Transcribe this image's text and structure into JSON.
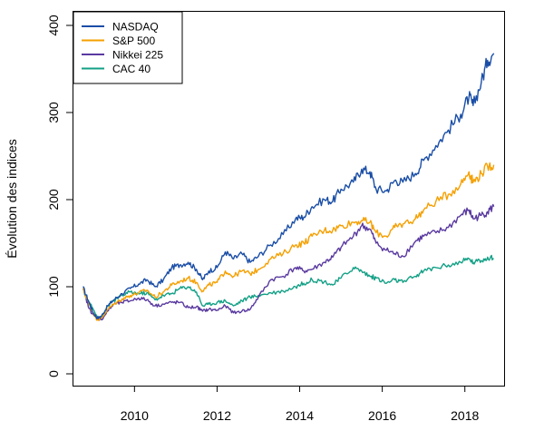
{
  "chart_data": {
    "type": "line",
    "xlabel": "",
    "ylabel": "Évolution des indices",
    "xlim": [
      2008.5,
      2018.95
    ],
    "ylim": [
      0,
      400
    ],
    "xticks": [
      2010,
      2012,
      2014,
      2016,
      2018
    ],
    "xtick_labels": [
      "2010",
      "2012",
      "2014",
      "2016",
      "2018"
    ],
    "yticks": [
      0,
      100,
      200,
      300,
      400
    ],
    "ytick_labels": [
      "0",
      "100",
      "200",
      "300",
      "400"
    ],
    "grid": false,
    "legend_position": "top-left",
    "series": [
      {
        "name": "NASDAQ",
        "color": "#1a4ea6",
        "x": [
          2008.75,
          2008.9,
          2009.0,
          2009.1,
          2009.2,
          2009.35,
          2009.5,
          2009.7,
          2009.9,
          2010.1,
          2010.3,
          2010.5,
          2010.7,
          2010.9,
          2011.1,
          2011.3,
          2011.5,
          2011.65,
          2011.8,
          2012.0,
          2012.2,
          2012.4,
          2012.6,
          2012.8,
          2013.0,
          2013.3,
          2013.6,
          2013.9,
          2014.1,
          2014.3,
          2014.6,
          2014.8,
          2015.0,
          2015.3,
          2015.5,
          2015.7,
          2015.85,
          2016.1,
          2016.3,
          2016.5,
          2016.8,
          2017.0,
          2017.3,
          2017.6,
          2017.9,
          2018.1,
          2018.2,
          2018.4,
          2018.55,
          2018.7
        ],
        "values": [
          100,
          82,
          70,
          64,
          66,
          78,
          85,
          92,
          98,
          103,
          108,
          100,
          108,
          122,
          125,
          128,
          120,
          108,
          118,
          122,
          140,
          132,
          138,
          128,
          135,
          148,
          160,
          178,
          180,
          192,
          200,
          198,
          212,
          220,
          235,
          232,
          212,
          210,
          222,
          220,
          230,
          245,
          262,
          280,
          298,
          318,
          308,
          335,
          360,
          368
        ]
      },
      {
        "name": "S&P 500",
        "color": "#f5a000",
        "x": [
          2008.75,
          2008.9,
          2009.0,
          2009.1,
          2009.2,
          2009.35,
          2009.5,
          2009.7,
          2009.9,
          2010.1,
          2010.3,
          2010.5,
          2010.7,
          2010.9,
          2011.1,
          2011.3,
          2011.5,
          2011.65,
          2011.8,
          2012.0,
          2012.2,
          2012.4,
          2012.6,
          2012.8,
          2013.0,
          2013.3,
          2013.6,
          2013.9,
          2014.1,
          2014.3,
          2014.6,
          2014.8,
          2015.0,
          2015.3,
          2015.5,
          2015.7,
          2015.85,
          2016.1,
          2016.3,
          2016.5,
          2016.8,
          2017.0,
          2017.3,
          2017.6,
          2017.9,
          2018.1,
          2018.2,
          2018.4,
          2018.55,
          2018.7
        ],
        "values": [
          98,
          80,
          70,
          62,
          64,
          74,
          80,
          86,
          90,
          93,
          96,
          88,
          94,
          102,
          106,
          110,
          105,
          95,
          102,
          105,
          118,
          112,
          118,
          115,
          120,
          132,
          138,
          148,
          150,
          158,
          165,
          165,
          170,
          174,
          176,
          174,
          162,
          158,
          168,
          172,
          178,
          188,
          198,
          206,
          218,
          232,
          220,
          230,
          238,
          240
        ]
      },
      {
        "name": "Nikkei 225",
        "color": "#5a3aa0",
        "x": [
          2008.75,
          2008.9,
          2009.0,
          2009.1,
          2009.2,
          2009.35,
          2009.5,
          2009.7,
          2009.9,
          2010.1,
          2010.3,
          2010.5,
          2010.7,
          2010.9,
          2011.1,
          2011.3,
          2011.5,
          2011.65,
          2011.8,
          2012.0,
          2012.2,
          2012.4,
          2012.6,
          2012.8,
          2013.0,
          2013.3,
          2013.6,
          2013.9,
          2014.1,
          2014.3,
          2014.6,
          2014.8,
          2015.0,
          2015.3,
          2015.5,
          2015.7,
          2015.85,
          2016.1,
          2016.3,
          2016.5,
          2016.8,
          2017.0,
          2017.3,
          2017.6,
          2017.9,
          2018.1,
          2018.2,
          2018.4,
          2018.55,
          2018.7
        ],
        "values": [
          98,
          75,
          68,
          64,
          62,
          72,
          80,
          82,
          84,
          87,
          85,
          78,
          80,
          82,
          82,
          76,
          77,
          72,
          74,
          73,
          78,
          70,
          72,
          74,
          88,
          108,
          112,
          122,
          118,
          120,
          128,
          134,
          145,
          158,
          170,
          166,
          150,
          142,
          138,
          135,
          152,
          158,
          162,
          168,
          182,
          188,
          178,
          182,
          186,
          192
        ]
      },
      {
        "name": "CAC 40",
        "color": "#13a086",
        "x": [
          2008.75,
          2008.9,
          2009.0,
          2009.1,
          2009.2,
          2009.35,
          2009.5,
          2009.7,
          2009.9,
          2010.1,
          2010.3,
          2010.5,
          2010.7,
          2010.9,
          2011.1,
          2011.3,
          2011.5,
          2011.65,
          2011.8,
          2012.0,
          2012.2,
          2012.4,
          2012.6,
          2012.8,
          2013.0,
          2013.3,
          2013.6,
          2013.9,
          2014.1,
          2014.3,
          2014.6,
          2014.8,
          2015.0,
          2015.3,
          2015.5,
          2015.7,
          2015.85,
          2016.1,
          2016.3,
          2016.5,
          2016.8,
          2017.0,
          2017.3,
          2017.6,
          2017.9,
          2018.1,
          2018.2,
          2018.4,
          2018.55,
          2018.7
        ],
        "values": [
          97,
          82,
          74,
          66,
          64,
          78,
          84,
          90,
          94,
          92,
          93,
          85,
          90,
          92,
          98,
          100,
          94,
          78,
          80,
          82,
          84,
          78,
          84,
          88,
          90,
          93,
          95,
          100,
          104,
          108,
          106,
          102,
          110,
          122,
          118,
          112,
          110,
          104,
          108,
          105,
          112,
          118,
          122,
          125,
          128,
          132,
          128,
          130,
          134,
          132
        ]
      }
    ]
  }
}
